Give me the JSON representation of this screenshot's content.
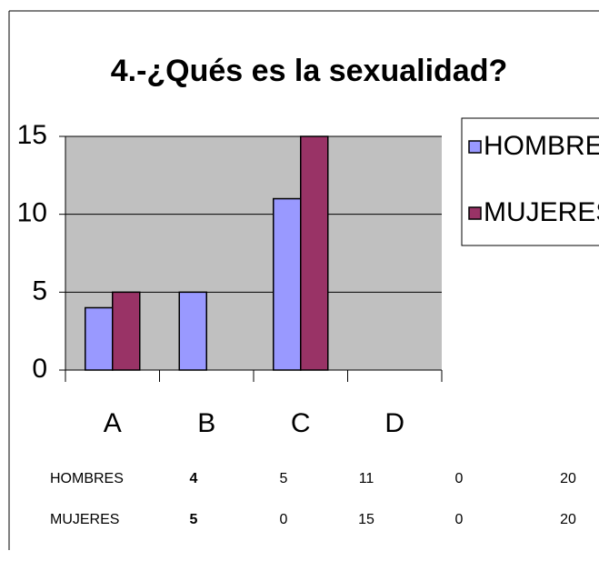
{
  "chart_data": {
    "type": "bar",
    "title": "4.-¿Qués es la sexualidad?",
    "categories": [
      "A",
      "B",
      "C",
      "D"
    ],
    "series": [
      {
        "name": "HOMBRES",
        "color": "#9999ff",
        "values": [
          4,
          5,
          11,
          0
        ]
      },
      {
        "name": "MUJERES",
        "color": "#993366",
        "values": [
          5,
          0,
          15,
          0
        ]
      }
    ],
    "ylim": [
      0,
      15
    ],
    "yticks": [
      0,
      5,
      10,
      15
    ],
    "grid": true,
    "legend": "right",
    "plot_background": "#c0c0c0",
    "data_table": {
      "totals": [
        20,
        20
      ]
    }
  }
}
